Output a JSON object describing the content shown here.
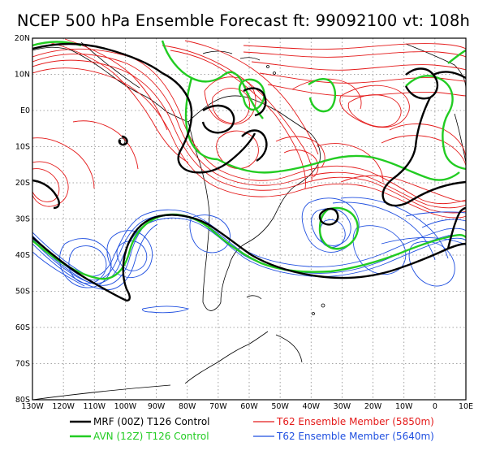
{
  "title": "NCEP 500 hPa Ensemble Forecast  ft: 99092100 vt: 108h",
  "lat_labels": [
    "20N",
    "10N",
    "E0",
    "10S",
    "20S",
    "30S",
    "40S",
    "50S",
    "60S",
    "70S",
    "80S"
  ],
  "lon_labels": [
    "130W",
    "120W",
    "110W",
    "100W",
    "90W",
    "80W",
    "70W",
    "60W",
    "50W",
    "40W",
    "30W",
    "20W",
    "10W",
    "0",
    "10E"
  ],
  "legend": [
    {
      "label": "MRF (00Z) T126 Control",
      "color": "#000000",
      "width": 2.6
    },
    {
      "label": "AVN (12Z) T126 Control",
      "color": "#22cc22",
      "width": 2.6
    },
    {
      "label": "T62 Ensemble Member (5850m)",
      "color": "#e41a1a",
      "width": 1.2
    },
    {
      "label": "T62 Ensemble Member (5640m)",
      "color": "#1f4fe0",
      "width": 1.2
    }
  ],
  "colors": {
    "black": "#000000",
    "green": "#22cc22",
    "red": "#e41a1a",
    "blue": "#1f4fe0",
    "grid": "#888888"
  }
}
